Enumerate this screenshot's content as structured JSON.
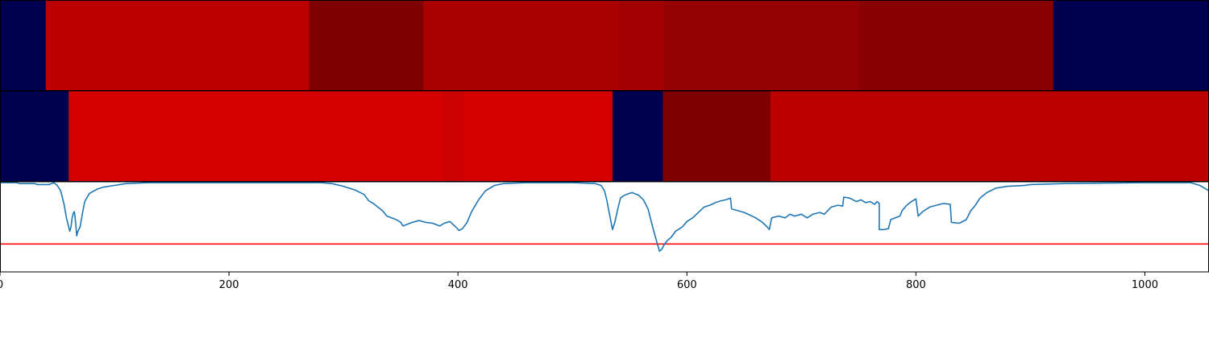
{
  "chart_data": {
    "type": "heatmap",
    "x_range": [
      0,
      1056
    ],
    "x_ticks": [
      0,
      200,
      400,
      600,
      800,
      1000
    ],
    "x_tick_labels": [
      "0",
      "200",
      "400",
      "600",
      "800",
      "1000"
    ],
    "colors": {
      "navy": "#000050",
      "red_1": "#bb0000",
      "red_2": "#7f0000",
      "red_3": "#ab0000",
      "red_4": "#a00000",
      "red_5": "#950000",
      "red_6": "#880000",
      "bright_red": "#d60000",
      "red_7": "#cc0000",
      "line": "#1f77b4",
      "threshold": "#ff0000"
    },
    "segment_track_1": [
      {
        "start": 0,
        "end": 40,
        "color": "#000050"
      },
      {
        "start": 40,
        "end": 270,
        "color": "#bb0000"
      },
      {
        "start": 270,
        "end": 370,
        "color": "#7f0000"
      },
      {
        "start": 370,
        "end": 540,
        "color": "#ab0000"
      },
      {
        "start": 540,
        "end": 580,
        "color": "#a00000"
      },
      {
        "start": 580,
        "end": 750,
        "color": "#950000"
      },
      {
        "start": 750,
        "end": 920,
        "color": "#880000"
      },
      {
        "start": 920,
        "end": 1056,
        "color": "#000050"
      }
    ],
    "segment_track_2": [
      {
        "start": 0,
        "end": 60,
        "color": "#000050"
      },
      {
        "start": 60,
        "end": 386,
        "color": "#d60000"
      },
      {
        "start": 386,
        "end": 405,
        "color": "#cc0000"
      },
      {
        "start": 405,
        "end": 535,
        "color": "#d60000"
      },
      {
        "start": 535,
        "end": 579,
        "color": "#000050"
      },
      {
        "start": 579,
        "end": 673,
        "color": "#7f0000"
      },
      {
        "start": 673,
        "end": 1056,
        "color": "#bb0000"
      }
    ],
    "line_series": {
      "y_range": [
        0,
        1
      ],
      "threshold": 0.31,
      "points": [
        [
          0,
          0.99
        ],
        [
          15,
          0.99
        ],
        [
          17,
          0.98
        ],
        [
          30,
          0.98
        ],
        [
          33,
          0.97
        ],
        [
          43,
          0.97
        ],
        [
          47,
          0.99
        ],
        [
          50,
          0.96
        ],
        [
          53,
          0.9
        ],
        [
          56,
          0.75
        ],
        [
          58,
          0.6
        ],
        [
          60,
          0.5
        ],
        [
          61,
          0.45
        ],
        [
          62,
          0.5
        ],
        [
          63,
          0.6
        ],
        [
          64,
          0.65
        ],
        [
          65,
          0.67
        ],
        [
          66,
          0.55
        ],
        [
          67,
          0.4
        ],
        [
          68,
          0.45
        ],
        [
          70,
          0.5
        ],
        [
          72,
          0.65
        ],
        [
          74,
          0.78
        ],
        [
          78,
          0.87
        ],
        [
          85,
          0.92
        ],
        [
          90,
          0.94
        ],
        [
          100,
          0.96
        ],
        [
          110,
          0.98
        ],
        [
          130,
          0.99
        ],
        [
          200,
          0.99
        ],
        [
          280,
          0.99
        ],
        [
          290,
          0.98
        ],
        [
          300,
          0.95
        ],
        [
          310,
          0.91
        ],
        [
          318,
          0.86
        ],
        [
          322,
          0.79
        ],
        [
          326,
          0.76
        ],
        [
          330,
          0.72
        ],
        [
          334,
          0.68
        ],
        [
          338,
          0.62
        ],
        [
          342,
          0.6
        ],
        [
          346,
          0.58
        ],
        [
          350,
          0.55
        ],
        [
          352,
          0.51
        ],
        [
          356,
          0.53
        ],
        [
          360,
          0.55
        ],
        [
          366,
          0.57
        ],
        [
          372,
          0.55
        ],
        [
          378,
          0.54
        ],
        [
          384,
          0.51
        ],
        [
          388,
          0.54
        ],
        [
          393,
          0.56
        ],
        [
          398,
          0.5
        ],
        [
          401,
          0.46
        ],
        [
          404,
          0.48
        ],
        [
          408,
          0.55
        ],
        [
          412,
          0.67
        ],
        [
          418,
          0.8
        ],
        [
          424,
          0.9
        ],
        [
          432,
          0.96
        ],
        [
          440,
          0.98
        ],
        [
          460,
          0.99
        ],
        [
          500,
          0.99
        ],
        [
          520,
          0.98
        ],
        [
          525,
          0.96
        ],
        [
          528,
          0.9
        ],
        [
          530,
          0.8
        ],
        [
          533,
          0.6
        ],
        [
          535,
          0.47
        ],
        [
          537,
          0.55
        ],
        [
          540,
          0.72
        ],
        [
          542,
          0.82
        ],
        [
          544,
          0.84
        ],
        [
          547,
          0.86
        ],
        [
          552,
          0.88
        ],
        [
          558,
          0.85
        ],
        [
          562,
          0.8
        ],
        [
          566,
          0.7
        ],
        [
          570,
          0.5
        ],
        [
          574,
          0.32
        ],
        [
          576,
          0.23
        ],
        [
          578,
          0.25
        ],
        [
          580,
          0.3
        ],
        [
          583,
          0.35
        ],
        [
          586,
          0.38
        ],
        [
          590,
          0.45
        ],
        [
          596,
          0.5
        ],
        [
          600,
          0.56
        ],
        [
          605,
          0.6
        ],
        [
          610,
          0.66
        ],
        [
          615,
          0.72
        ],
        [
          620,
          0.74
        ],
        [
          625,
          0.77
        ],
        [
          630,
          0.79
        ],
        [
          634,
          0.8
        ],
        [
          638,
          0.82
        ],
        [
          639,
          0.7
        ],
        [
          650,
          0.66
        ],
        [
          655,
          0.63
        ],
        [
          660,
          0.6
        ],
        [
          666,
          0.55
        ],
        [
          670,
          0.5
        ],
        [
          672,
          0.47
        ],
        [
          674,
          0.6
        ],
        [
          680,
          0.62
        ],
        [
          686,
          0.6
        ],
        [
          690,
          0.64
        ],
        [
          694,
          0.62
        ],
        [
          700,
          0.64
        ],
        [
          705,
          0.6
        ],
        [
          710,
          0.64
        ],
        [
          716,
          0.66
        ],
        [
          720,
          0.64
        ],
        [
          726,
          0.72
        ],
        [
          732,
          0.74
        ],
        [
          736,
          0.73
        ],
        [
          737,
          0.83
        ],
        [
          742,
          0.82
        ],
        [
          748,
          0.78
        ],
        [
          752,
          0.8
        ],
        [
          756,
          0.77
        ],
        [
          760,
          0.78
        ],
        [
          764,
          0.75
        ],
        [
          766,
          0.78
        ],
        [
          768,
          0.76
        ],
        [
          768,
          0.47
        ],
        [
          772,
          0.47
        ],
        [
          776,
          0.48
        ],
        [
          778,
          0.58
        ],
        [
          782,
          0.6
        ],
        [
          786,
          0.62
        ],
        [
          788,
          0.68
        ],
        [
          792,
          0.74
        ],
        [
          796,
          0.78
        ],
        [
          800,
          0.81
        ],
        [
          802,
          0.62
        ],
        [
          806,
          0.67
        ],
        [
          812,
          0.72
        ],
        [
          818,
          0.74
        ],
        [
          824,
          0.76
        ],
        [
          830,
          0.75
        ],
        [
          831,
          0.55
        ],
        [
          838,
          0.54
        ],
        [
          844,
          0.58
        ],
        [
          848,
          0.68
        ],
        [
          852,
          0.74
        ],
        [
          856,
          0.82
        ],
        [
          862,
          0.88
        ],
        [
          870,
          0.93
        ],
        [
          880,
          0.95
        ],
        [
          895,
          0.96
        ],
        [
          900,
          0.97
        ],
        [
          930,
          0.98
        ],
        [
          1000,
          0.99
        ],
        [
          1040,
          0.99
        ],
        [
          1048,
          0.96
        ],
        [
          1052,
          0.93
        ],
        [
          1056,
          0.9
        ]
      ]
    }
  }
}
